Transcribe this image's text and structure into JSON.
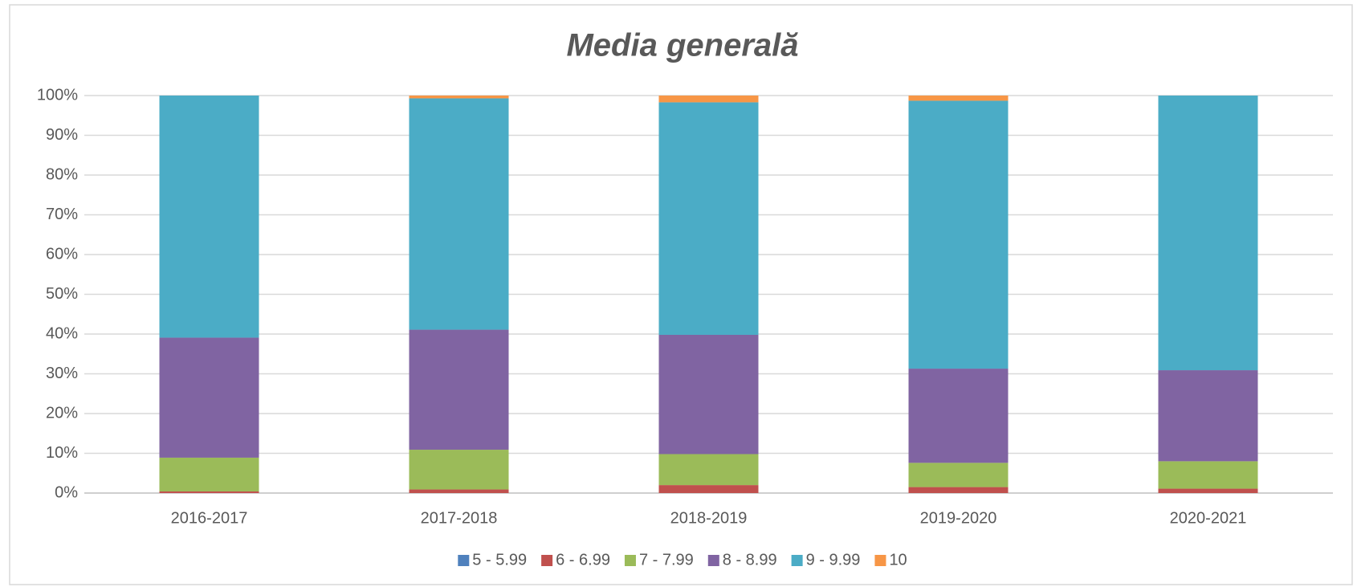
{
  "chart_data": {
    "type": "stacked_bar",
    "title": "Media generală",
    "categories": [
      "2016-2017",
      "2017-2018",
      "2018-2019",
      "2019-2020",
      "2020-2021"
    ],
    "series": [
      {
        "name": "5 - 5.99",
        "color": "#4f81bd",
        "values": [
          0,
          0,
          0,
          0,
          0
        ]
      },
      {
        "name": "6 - 6.99",
        "color": "#c0504d",
        "values": [
          0.4,
          0.9,
          2.0,
          1.5,
          1.1
        ]
      },
      {
        "name": "7 - 7.99",
        "color": "#9bbb59",
        "values": [
          8.5,
          10.0,
          7.8,
          6.1,
          6.9
        ]
      },
      {
        "name": "8 - 8.99",
        "color": "#8064a2",
        "values": [
          30.2,
          30.2,
          30.0,
          23.7,
          22.9
        ]
      },
      {
        "name": "9 - 9.99",
        "color": "#4bacc6",
        "values": [
          60.9,
          58.2,
          58.5,
          67.4,
          69.1
        ]
      },
      {
        "name": "10",
        "color": "#f79646",
        "values": [
          0,
          0.7,
          1.7,
          1.3,
          0
        ]
      }
    ],
    "ylim": [
      0,
      100
    ],
    "yticks": [
      {
        "value": 0,
        "label": "0%"
      },
      {
        "value": 10,
        "label": "10%"
      },
      {
        "value": 20,
        "label": "20%"
      },
      {
        "value": 30,
        "label": "30%"
      },
      {
        "value": 40,
        "label": "40%"
      },
      {
        "value": 50,
        "label": "50%"
      },
      {
        "value": 60,
        "label": "60%"
      },
      {
        "value": 70,
        "label": "70%"
      },
      {
        "value": 80,
        "label": "80%"
      },
      {
        "value": 90,
        "label": "90%"
      },
      {
        "value": 100,
        "label": "100%"
      }
    ],
    "grid": true,
    "legend": "bottom"
  }
}
